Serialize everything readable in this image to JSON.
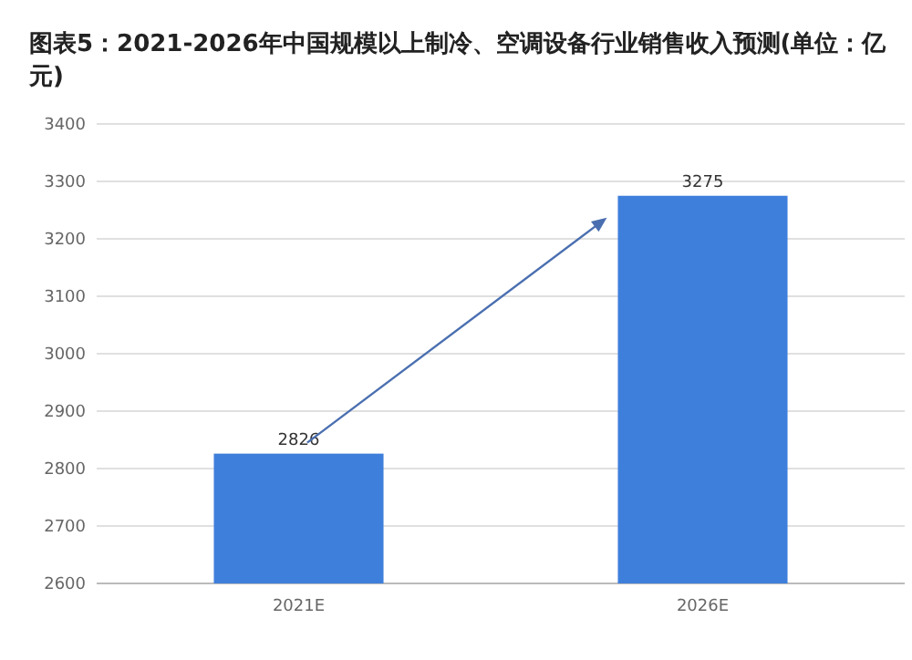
{
  "chart_data": {
    "type": "bar",
    "title": "图表5：2021-2026年中国规模以上制冷、空调设备行业销售收入预测(单位：亿元)",
    "categories": [
      "2021E",
      "2026E"
    ],
    "values": [
      2826,
      3275
    ],
    "color": "#3f7fdc",
    "ylim": [
      2600,
      3400
    ],
    "yticks": [
      2600,
      2700,
      2800,
      2900,
      3000,
      3100,
      3200,
      3300,
      3400
    ],
    "grid": "y",
    "data_labels": true
  }
}
